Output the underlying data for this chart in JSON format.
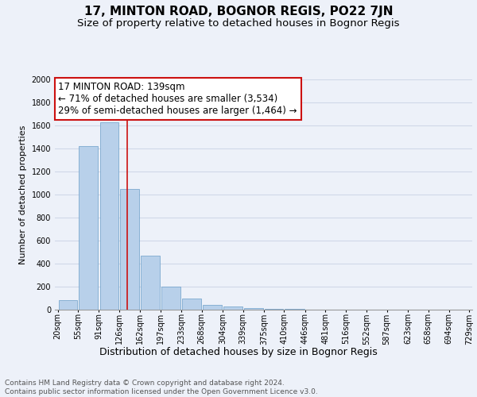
{
  "title": "17, MINTON ROAD, BOGNOR REGIS, PO22 7JN",
  "subtitle": "Size of property relative to detached houses in Bognor Regis",
  "xlabel": "Distribution of detached houses by size in Bognor Regis",
  "ylabel": "Number of detached properties",
  "footer_line1": "Contains HM Land Registry data © Crown copyright and database right 2024.",
  "footer_line2": "Contains public sector information licensed under the Open Government Licence v3.0.",
  "annotation_line1": "17 MINTON ROAD: 139sqm",
  "annotation_line2": "← 71% of detached houses are smaller (3,534)",
  "annotation_line3": "29% of semi-detached houses are larger (1,464) →",
  "property_size_sqm": 139,
  "bin_edges": [
    20,
    55,
    91,
    126,
    162,
    197,
    233,
    268,
    304,
    339,
    375,
    410,
    446,
    481,
    516,
    552,
    587,
    623,
    658,
    694,
    729
  ],
  "bin_counts": [
    85,
    1420,
    1630,
    1050,
    470,
    200,
    100,
    40,
    25,
    15,
    10,
    8,
    0,
    0,
    0,
    0,
    0,
    0,
    0,
    0
  ],
  "bar_color": "#b8d0ea",
  "bar_edge_color": "#6b9ec8",
  "highlight_color": "#cc1111",
  "ylim": [
    0,
    2000
  ],
  "yticks": [
    0,
    200,
    400,
    600,
    800,
    1000,
    1200,
    1400,
    1600,
    1800,
    2000
  ],
  "bg_color": "#edf1f9",
  "plot_bg_color": "#edf1f9",
  "grid_color": "#d0d8e8",
  "title_fontsize": 11,
  "subtitle_fontsize": 9.5,
  "xlabel_fontsize": 9,
  "ylabel_fontsize": 8,
  "tick_fontsize": 7,
  "annotation_fontsize": 8.5,
  "footer_fontsize": 6.5
}
